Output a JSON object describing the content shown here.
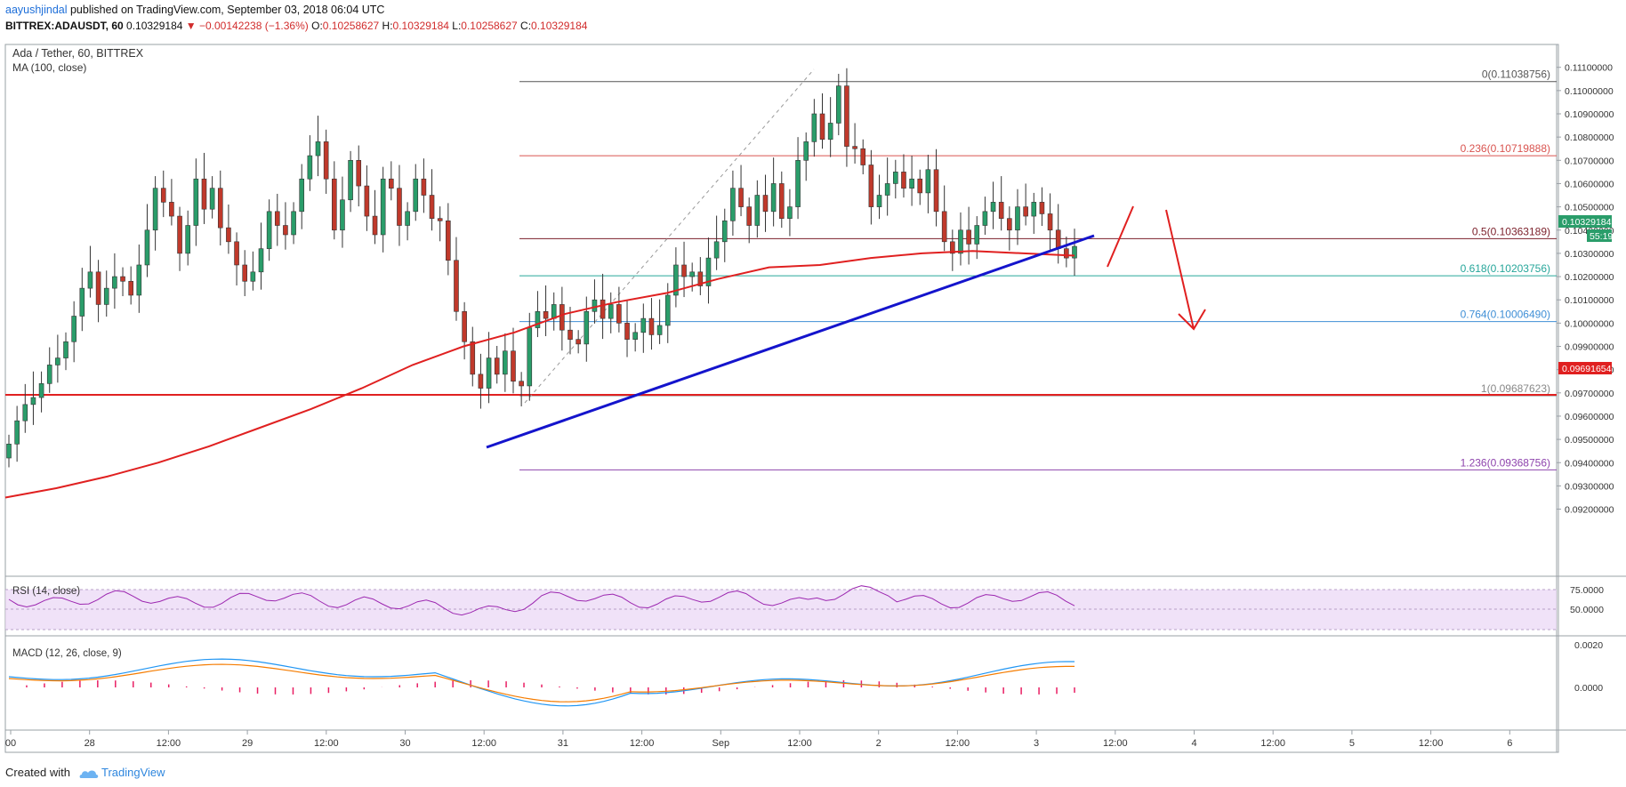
{
  "header": {
    "author": "aayushjindal",
    "published_text": "published on TradingView.com, September 03, 2018 06:04 UTC",
    "symbol": "BITTREX:ADAUSDT, 60",
    "last": "0.10329184",
    "change": "▼ −0.00142238 (−1.36%)",
    "o_label": "O:",
    "o": "0.10258627",
    "h_label": "H:",
    "h": "0.10329184",
    "l_label": "L:",
    "l": "0.10258627",
    "c_label": "C:",
    "c": "0.10329184"
  },
  "footer": {
    "created_with": "Created with",
    "brand": "TradingView"
  },
  "colors": {
    "up": "#2a9d6a",
    "down": "#c0392b",
    "ma": "#e02020",
    "trend": "#1010d0",
    "rsi": "#9c27b0",
    "macd": "#2196f3",
    "signal": "#f57c00",
    "hist": "#e91e63"
  },
  "chart_data": {
    "type": "candlestick",
    "title": "Ada / Tether, 60, BITTREX",
    "indicator_label": "MA (100, close)",
    "y_ticks": [
      "0.11100000",
      "0.11000000",
      "0.10900000",
      "0.10800000",
      "0.10700000",
      "0.10600000",
      "0.10500000",
      "0.10400000",
      "0.10300000",
      "0.10200000",
      "0.10100000",
      "0.10000000",
      "0.09900000",
      "0.09800000",
      "0.09700000",
      "0.09600000",
      "0.09500000",
      "0.09400000",
      "0.09300000",
      "0.09200000"
    ],
    "y_tick_values": [
      0.111,
      0.11,
      0.109,
      0.108,
      0.107,
      0.106,
      0.105,
      0.104,
      0.103,
      0.102,
      0.101,
      0.1,
      0.099,
      0.098,
      0.097,
      0.096,
      0.095,
      0.094,
      0.093,
      0.092
    ],
    "ylim": [
      0.0915,
      0.1114
    ],
    "x_labels": [
      "00",
      "28",
      "12:00",
      "29",
      "12:00",
      "30",
      "12:00",
      "31",
      "12:00",
      "Sep",
      "12:00",
      "2",
      "12:00",
      "3",
      "12:00",
      "4",
      "12:00",
      "5",
      "12:00",
      "6"
    ],
    "price_tags": {
      "last": "0.10329184",
      "countdown": "55:19",
      "support": "0.09691654"
    },
    "fib_levels": [
      {
        "label": "0(0.11038756)",
        "value": 0.11038756,
        "color": "#555555"
      },
      {
        "label": "0.236(0.10719888)",
        "value": 0.10719888,
        "color": "#d9534f"
      },
      {
        "label": "0.5(0.10363189)",
        "value": 0.10363189,
        "color": "#7b1f2a"
      },
      {
        "label": "0.618(0.10203756)",
        "value": 0.10203756,
        "color": "#26a69a"
      },
      {
        "label": "0.764(0.10006490)",
        "value": 0.1000649,
        "color": "#3f8fd6"
      },
      {
        "label": "1(0.09687623)",
        "value": 0.09687623,
        "color": "#888888"
      },
      {
        "label": "1.236(0.09368756)",
        "value": 0.09368756,
        "color": "#8e44ad"
      }
    ],
    "support_level": 0.09691654,
    "close_series_approx": [
      0.0948,
      0.0958,
      0.0965,
      0.0968,
      0.0974,
      0.0982,
      0.0985,
      0.0992,
      0.1003,
      0.1015,
      0.1022,
      0.1008,
      0.1015,
      0.102,
      0.1018,
      0.1012,
      0.1025,
      0.104,
      0.1058,
      0.1052,
      0.1046,
      0.103,
      0.1042,
      0.1062,
      0.1049,
      0.1058,
      0.1041,
      0.1035,
      0.1025,
      0.1018,
      0.1022,
      0.1032,
      0.1048,
      0.1042,
      0.1038,
      0.1048,
      0.1062,
      0.1072,
      0.1078,
      0.1062,
      0.104,
      0.1053,
      0.107,
      0.1059,
      0.1046,
      0.1038,
      0.1062,
      0.1058,
      0.1042,
      0.1048,
      0.1062,
      0.1055,
      0.1045,
      0.1044,
      0.1027,
      0.1005,
      0.0992,
      0.0978,
      0.0972,
      0.0985,
      0.0978,
      0.0988,
      0.0975,
      0.0973,
      0.0998,
      0.1005,
      0.1002,
      0.1008,
      0.0997,
      0.0993,
      0.0991,
      0.1005,
      0.101,
      0.1002,
      0.1008,
      0.1,
      0.0993,
      0.0996,
      0.1002,
      0.0995,
      0.0999,
      0.1012,
      0.1025,
      0.102,
      0.1022,
      0.1016,
      0.1028,
      0.1035,
      0.1044,
      0.1058,
      0.105,
      0.1042,
      0.1055,
      0.1048,
      0.106,
      0.1045,
      0.105,
      0.107,
      0.1078,
      0.109,
      0.1079,
      0.1086,
      0.1102,
      0.1076,
      0.1075,
      0.1068,
      0.105,
      0.1055,
      0.106,
      0.1065,
      0.1058,
      0.1062,
      0.1056,
      0.1066,
      0.1048,
      0.1035,
      0.103,
      0.104,
      0.1034,
      0.1042,
      0.1048,
      0.1052,
      0.1045,
      0.104,
      0.105,
      0.1046,
      0.1052,
      0.1047,
      0.104,
      0.1032,
      0.1028,
      0.1033
    ],
    "ma100_approx": [
      0.0925,
      0.0929,
      0.0934,
      0.094,
      0.0947,
      0.0955,
      0.0963,
      0.0972,
      0.0982,
      0.099,
      0.0996,
      0.1004,
      0.1009,
      0.1013,
      0.1019,
      0.1024,
      0.1025,
      0.1028,
      0.103,
      0.1031,
      0.103,
      0.1029
    ],
    "trendline": {
      "start": [
        0.0966
      ],
      "end": [
        0.1041
      ]
    },
    "rsi": {
      "label": "RSI (14, close)",
      "ticks": [
        "75.0000",
        "50.0000"
      ]
    },
    "macd": {
      "label": "MACD (12, 26, close, 9)",
      "ticks": [
        "0.0020",
        "0.0000"
      ]
    }
  }
}
